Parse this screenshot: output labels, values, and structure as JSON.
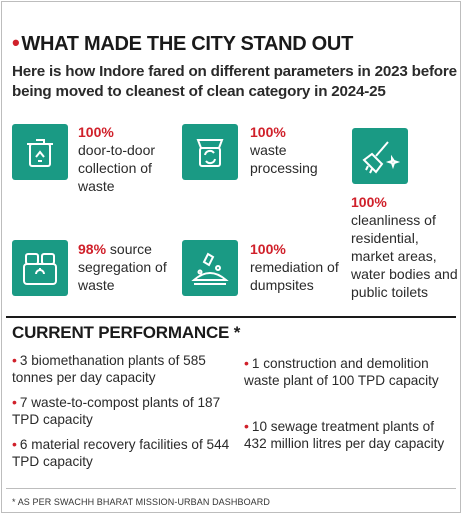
{
  "title": "WHAT MADE THE CITY STAND OUT",
  "subtitle": "Here is how Indore fared on different parameters in 2023 before being moved to cleanest of clean category in 2024-25",
  "stats": [
    {
      "pct": "100%",
      "text": "door-to-door collection of waste",
      "icon": "waste-bin-icon"
    },
    {
      "pct": "100%",
      "text": "waste processing",
      "icon": "recycle-truck-icon"
    },
    {
      "pct": "100%",
      "text": "cleanliness of residential, market areas, water bodies and public toilets",
      "icon": "cleaning-brush-icon"
    },
    {
      "pct": "98%",
      "text": "source segregation of waste",
      "icon": "segregation-bins-icon"
    },
    {
      "pct": "100%",
      "text": "remediation of dumpsites",
      "icon": "dumpsite-icon"
    }
  ],
  "current": {
    "title": "CURRENT PERFORMANCE *",
    "items": [
      "3 biomethanation plants of 585 tonnes per day capacity",
      "7 waste-to-compost plants of 187 TPD capacity",
      "6 material recovery facilities of 544 TPD capacity",
      "1 construction and demolition waste plant of 100 TPD capacity",
      "10 sewage treatment plants of 432 million litres per day capacity"
    ]
  },
  "footnote": "* AS PER SWACHH BHARAT MISSION-URBAN DASHBOARD",
  "colors": {
    "accent": "#d0202a",
    "tile": "#1a9a84"
  }
}
